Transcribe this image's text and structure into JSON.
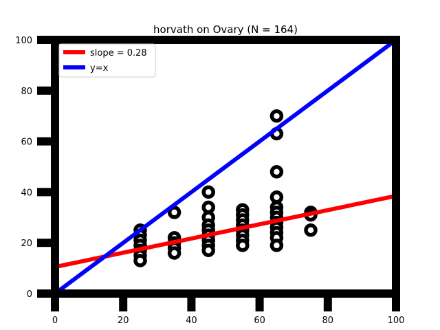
{
  "chart_data": {
    "type": "scatter",
    "title": "horvath on Ovary (N = 164)",
    "xlabel": "",
    "ylabel": "",
    "xlim": [
      0,
      100
    ],
    "ylim": [
      0,
      100
    ],
    "xticks": [
      0,
      20,
      40,
      60,
      80,
      100
    ],
    "yticks": [
      0,
      20,
      40,
      60,
      80,
      100
    ],
    "grid": false,
    "legend_position": "top-left",
    "colors": {
      "points": "#000000",
      "fit": "#ff0000",
      "identity": "#0000ff",
      "frame": "#000000"
    },
    "series": [
      {
        "kind": "scatter",
        "points": [
          [
            25,
            25
          ],
          [
            25,
            23
          ],
          [
            25,
            21
          ],
          [
            25,
            19
          ],
          [
            25,
            17
          ],
          [
            25,
            15
          ],
          [
            25,
            13
          ],
          [
            35,
            32
          ],
          [
            35,
            22
          ],
          [
            35,
            20
          ],
          [
            35,
            18
          ],
          [
            35,
            16
          ],
          [
            45,
            40
          ],
          [
            45,
            34
          ],
          [
            45,
            30
          ],
          [
            45,
            27
          ],
          [
            45,
            25
          ],
          [
            45,
            23
          ],
          [
            45,
            21
          ],
          [
            45,
            19
          ],
          [
            45,
            17
          ],
          [
            55,
            33
          ],
          [
            55,
            31
          ],
          [
            55,
            29
          ],
          [
            55,
            27
          ],
          [
            55,
            25
          ],
          [
            55,
            23
          ],
          [
            55,
            21
          ],
          [
            55,
            19
          ],
          [
            65,
            70
          ],
          [
            65,
            63
          ],
          [
            65,
            48
          ],
          [
            65,
            38
          ],
          [
            65,
            34
          ],
          [
            65,
            32
          ],
          [
            65,
            30
          ],
          [
            65,
            28
          ],
          [
            65,
            26
          ],
          [
            65,
            24
          ],
          [
            65,
            22
          ],
          [
            65,
            19
          ],
          [
            75,
            32
          ],
          [
            75,
            31
          ],
          [
            75,
            25
          ]
        ]
      },
      {
        "kind": "line",
        "name": "slope = 0.28",
        "x": [
          0,
          100
        ],
        "y": [
          10.5,
          38.5
        ]
      },
      {
        "kind": "line",
        "name": "y=x",
        "x": [
          0,
          100
        ],
        "y": [
          0,
          100
        ]
      }
    ]
  }
}
